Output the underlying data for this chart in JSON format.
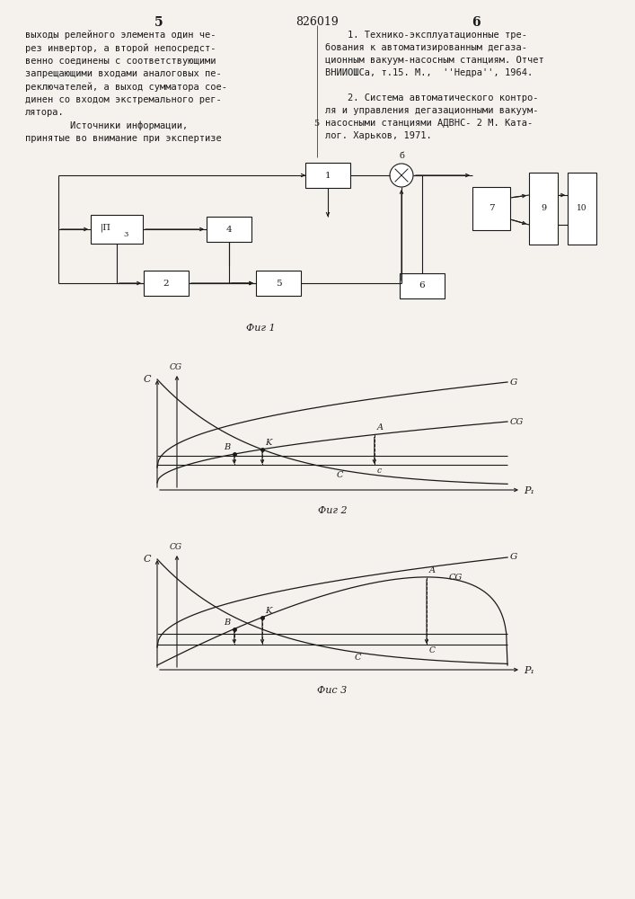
{
  "bg_color": "#f5f2ed",
  "lc": "#1a1a1a",
  "page_num_left": "5",
  "page_title": "826019",
  "page_num_right": "6",
  "left_col_text": "выходы релейного элемента один че-\nрез инвертор, а второй непосредст-\nвенно соединены с соответствующими\nзапрещающими входами аналоговых пе-\nреключателей, а выход сумматора сое-\nдинен со входом экстремального рег-\nлятора.\n        Источники информации,\nпринятые во внимание при экспертизе",
  "right_col_text1": "    1. Технико-эксплуатационные тре-\nбо-\nвания к автоматизированным дегаза-\nционным вакуум-насосным станциям. Отчет\nВНИИОШСа, т.15. М.,  ''Недра'', 1964.",
  "right_col_text2": "    2. Система автоматического контро-\nля и управления дегазационными вакуум-\nнасосными станциями АДВНС- 2 М. Ката-\nлог. Харьков, 1971.",
  "marker5": "5",
  "fig1_caption": "Фиг 1",
  "fig2_caption": "Фиг 2",
  "fig3_caption": "Фис 3"
}
